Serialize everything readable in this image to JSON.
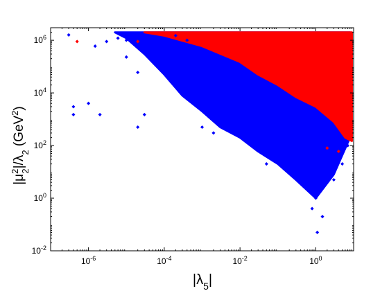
{
  "chart_data": {
    "type": "scatter",
    "xlabel": "|λ5|",
    "ylabel": "|μ22|/λ2 (GeV2)",
    "x_scale": "log",
    "y_scale": "log",
    "xlim": [
      1e-07,
      10
    ],
    "ylim": [
      0.01,
      3000000.0
    ],
    "grid": false,
    "legend": "none",
    "x_ticks": [
      {
        "value": 1e-06,
        "base": "10",
        "exp": "-6"
      },
      {
        "value": 0.0001,
        "base": "10",
        "exp": "-4"
      },
      {
        "value": 0.01,
        "base": "10",
        "exp": "-2"
      },
      {
        "value": 1,
        "base": "10",
        "exp": "0"
      }
    ],
    "y_ticks": [
      {
        "value": 0.01,
        "base": "10",
        "exp": "-2"
      },
      {
        "value": 1,
        "base": "10",
        "exp": "0"
      },
      {
        "value": 100.0,
        "base": "10",
        "exp": "2"
      },
      {
        "value": 10000.0,
        "base": "10",
        "exp": "4"
      },
      {
        "value": 1000000.0,
        "base": "10",
        "exp": "6"
      }
    ],
    "series": [
      {
        "color": "#0000ff",
        "points": [
          [
            3e-07,
            1600000.0
          ],
          [
            4e-07,
            3000.0
          ],
          [
            4e-07,
            1500.0
          ],
          [
            1e-06,
            4000.0
          ],
          [
            2e-06,
            1500.0
          ],
          [
            1.5e-06,
            600000.0
          ],
          [
            3e-06,
            900000.0
          ],
          [
            6e-06,
            1200000.0
          ],
          [
            1e-05,
            230000.0
          ],
          [
            2e-05,
            60000.0
          ],
          [
            1e-05,
            1000000.0
          ],
          [
            3e-05,
            800000.0
          ],
          [
            5e-05,
            400000.0
          ],
          [
            8e-05,
            150000.0
          ],
          [
            0.0001,
            60000.0
          ],
          [
            0.0001,
            100000.0
          ],
          [
            0.0002,
            200000.0
          ],
          [
            0.0002,
            30000.0
          ],
          [
            0.0003,
            10000.0
          ],
          [
            0.0005,
            60000.0
          ],
          [
            0.0005,
            5000.0
          ],
          [
            0.001,
            15000.0
          ],
          [
            0.001,
            3000.0
          ],
          [
            0.002,
            5000.0
          ],
          [
            0.003,
            800.0
          ],
          [
            0.005,
            2000.0
          ],
          [
            0.01,
            3000.0
          ],
          [
            0.01,
            400.0
          ],
          [
            0.02,
            200.0
          ],
          [
            0.03,
            1000.0
          ],
          [
            0.05,
            80
          ],
          [
            0.1,
            300
          ],
          [
            0.1,
            30
          ],
          [
            0.2,
            100
          ],
          [
            0.3,
            10
          ],
          [
            0.5,
            50
          ],
          [
            0.5,
            3
          ],
          [
            1,
            15
          ],
          [
            1,
            1
          ],
          [
            1.5,
            0.2
          ],
          [
            0.0002,
            1500000.0
          ],
          [
            0.0004,
            1000000.0
          ],
          [
            0.0008,
            200000.0
          ],
          [
            0.003,
            20000.0
          ],
          [
            0.008,
            8000.0
          ],
          [
            0.02,
            3000.0
          ],
          [
            0.06,
            1000.0
          ],
          [
            0.2,
            400
          ],
          [
            0.6,
            150
          ],
          [
            2,
            60
          ],
          [
            3e-05,
            1500.0
          ],
          [
            2e-05,
            500.0
          ],
          [
            0.001,
            500.0
          ],
          [
            0.002,
            300.0
          ],
          [
            0.05,
            20
          ],
          [
            1.1,
            0.05
          ],
          [
            0.8,
            0.4
          ],
          [
            3,
            5
          ],
          [
            5,
            20
          ],
          [
            7,
            100
          ]
        ]
      },
      {
        "color": "#ff0000",
        "points": [
          [
            5e-07,
            900000.0
          ],
          [
            2e-05,
            900000.0
          ],
          [
            0.0003,
            1500000.0
          ],
          [
            0.001,
            1000000.0
          ],
          [
            0.005,
            600000.0
          ],
          [
            0.02,
            400000.0
          ],
          [
            0.1,
            100000.0
          ],
          [
            0.3,
            30000.0
          ],
          [
            1,
            10000.0
          ],
          [
            3,
            3000.0
          ],
          [
            5,
            500
          ],
          [
            8,
            200
          ],
          [
            2,
            80
          ],
          [
            4,
            60
          ]
        ]
      }
    ],
    "regions": [
      {
        "color": "#0000ff",
        "polygon": [
          [
            5e-06,
            2000000.0
          ],
          [
            1e-05,
            1200000.0
          ],
          [
            3e-05,
            300000.0
          ],
          [
            0.0001,
            50000.0
          ],
          [
            0.0003,
            8000.0
          ],
          [
            0.001,
            2000.0
          ],
          [
            0.003,
            500.0
          ],
          [
            0.01,
            200.0
          ],
          [
            0.03,
            60
          ],
          [
            0.1,
            20
          ],
          [
            0.3,
            5
          ],
          [
            1,
            1
          ],
          [
            3,
            8
          ],
          [
            8,
            200
          ],
          [
            8,
            2000000.0
          ]
        ]
      },
      {
        "color": "#ff0000",
        "polygon": [
          [
            3e-05,
            2000000.0
          ],
          [
            0.0001,
            1500000.0
          ],
          [
            0.001,
            600000.0
          ],
          [
            0.01,
            150000.0
          ],
          [
            0.03,
            50000.0
          ],
          [
            0.1,
            20000.0
          ],
          [
            0.3,
            7000.0
          ],
          [
            1,
            3000.0
          ],
          [
            3,
            800.0
          ],
          [
            6,
            200
          ],
          [
            9,
            150
          ],
          [
            9,
            2000000.0
          ]
        ]
      }
    ]
  }
}
